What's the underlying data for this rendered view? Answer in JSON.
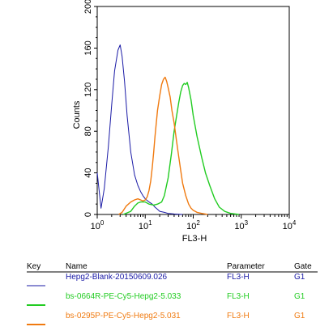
{
  "chart_data": {
    "type": "line",
    "xlabel": "FL3-H",
    "ylabel": "Counts",
    "x_scale": "log",
    "xlim": [
      1,
      10000
    ],
    "ylim": [
      0,
      200
    ],
    "x_ticks": [
      {
        "value": 1,
        "base": "10",
        "exp": "0"
      },
      {
        "value": 10,
        "base": "10",
        "exp": "1"
      },
      {
        "value": 100,
        "base": "10",
        "exp": "2"
      },
      {
        "value": 1000,
        "base": "10",
        "exp": "3"
      },
      {
        "value": 10000,
        "base": "10",
        "exp": "4"
      }
    ],
    "y_ticks": [
      0,
      40,
      80,
      120,
      160,
      200
    ],
    "series": [
      {
        "name": "Hepg2-Blank-20150609.026",
        "color": "#1a1aa6",
        "points": [
          [
            1,
            40
          ],
          [
            1.2,
            6
          ],
          [
            1.4,
            25
          ],
          [
            1.7,
            65
          ],
          [
            2,
            105
          ],
          [
            2.3,
            138
          ],
          [
            2.7,
            158
          ],
          [
            3,
            163
          ],
          [
            3.3,
            152
          ],
          [
            3.7,
            128
          ],
          [
            4.2,
            95
          ],
          [
            5,
            60
          ],
          [
            6,
            38
          ],
          [
            7,
            28
          ],
          [
            8,
            22
          ],
          [
            9,
            18
          ],
          [
            10,
            15
          ],
          [
            12,
            12
          ],
          [
            14,
            10
          ],
          [
            16,
            7
          ],
          [
            18,
            5
          ],
          [
            20,
            3
          ],
          [
            25,
            2
          ],
          [
            30,
            1
          ],
          [
            40,
            0.5
          ],
          [
            60,
            0
          ],
          [
            100000,
            0
          ]
        ]
      },
      {
        "name": "bs-0664R-PE-Cy5-Hepg2-5.033",
        "color": "#22cc22",
        "points": [
          [
            3.5,
            0
          ],
          [
            5,
            3
          ],
          [
            6,
            8
          ],
          [
            7,
            11
          ],
          [
            8,
            12
          ],
          [
            10,
            12
          ],
          [
            12,
            10
          ],
          [
            15,
            9
          ],
          [
            18,
            10
          ],
          [
            22,
            12
          ],
          [
            25,
            18
          ],
          [
            30,
            35
          ],
          [
            35,
            58
          ],
          [
            40,
            80
          ],
          [
            45,
            95
          ],
          [
            50,
            108
          ],
          [
            55,
            118
          ],
          [
            60,
            124
          ],
          [
            65,
            126
          ],
          [
            70,
            125
          ],
          [
            75,
            127
          ],
          [
            80,
            122
          ],
          [
            90,
            110
          ],
          [
            100,
            95
          ],
          [
            120,
            75
          ],
          [
            150,
            55
          ],
          [
            180,
            40
          ],
          [
            220,
            28
          ],
          [
            280,
            15
          ],
          [
            350,
            7
          ],
          [
            450,
            3
          ],
          [
            600,
            1
          ],
          [
            900,
            0
          ]
        ]
      },
      {
        "name": "bs-0295P-PE-Cy5-Hepg2-5.031",
        "color": "#f07a10",
        "points": [
          [
            2.8,
            0
          ],
          [
            3.3,
            2
          ],
          [
            4,
            8
          ],
          [
            5,
            12
          ],
          [
            6,
            14
          ],
          [
            7,
            15
          ],
          [
            8,
            14
          ],
          [
            9,
            13
          ],
          [
            10,
            14
          ],
          [
            11,
            17
          ],
          [
            12,
            23
          ],
          [
            13,
            32
          ],
          [
            14,
            45
          ],
          [
            15,
            60
          ],
          [
            16,
            75
          ],
          [
            17,
            88
          ],
          [
            18,
            100
          ],
          [
            20,
            114
          ],
          [
            22,
            125
          ],
          [
            24,
            130
          ],
          [
            26,
            132
          ],
          [
            28,
            128
          ],
          [
            30,
            122
          ],
          [
            33,
            113
          ],
          [
            36,
            100
          ],
          [
            40,
            88
          ],
          [
            45,
            70
          ],
          [
            50,
            55
          ],
          [
            55,
            42
          ],
          [
            60,
            30
          ],
          [
            70,
            18
          ],
          [
            80,
            10
          ],
          [
            90,
            6
          ],
          [
            100,
            4
          ],
          [
            120,
            2
          ],
          [
            150,
            1
          ],
          [
            200,
            0
          ]
        ]
      }
    ],
    "legend": {
      "headers": {
        "key": "Key",
        "name": "Name",
        "parameter": "Parameter",
        "gate": "Gate"
      },
      "rows": [
        {
          "name": "Hepg2-Blank-20150609.026",
          "parameter": "FL3-H",
          "gate": "G1",
          "color": "#1a1aa6"
        },
        {
          "name": "bs-0664R-PE-Cy5-Hepg2-5.033",
          "parameter": "FL3-H",
          "gate": "G1",
          "color": "#22cc22"
        },
        {
          "name": "bs-0295P-PE-Cy5-Hepg2-5.031",
          "parameter": "FL3-H",
          "gate": "G1",
          "color": "#f07a10"
        }
      ]
    }
  }
}
